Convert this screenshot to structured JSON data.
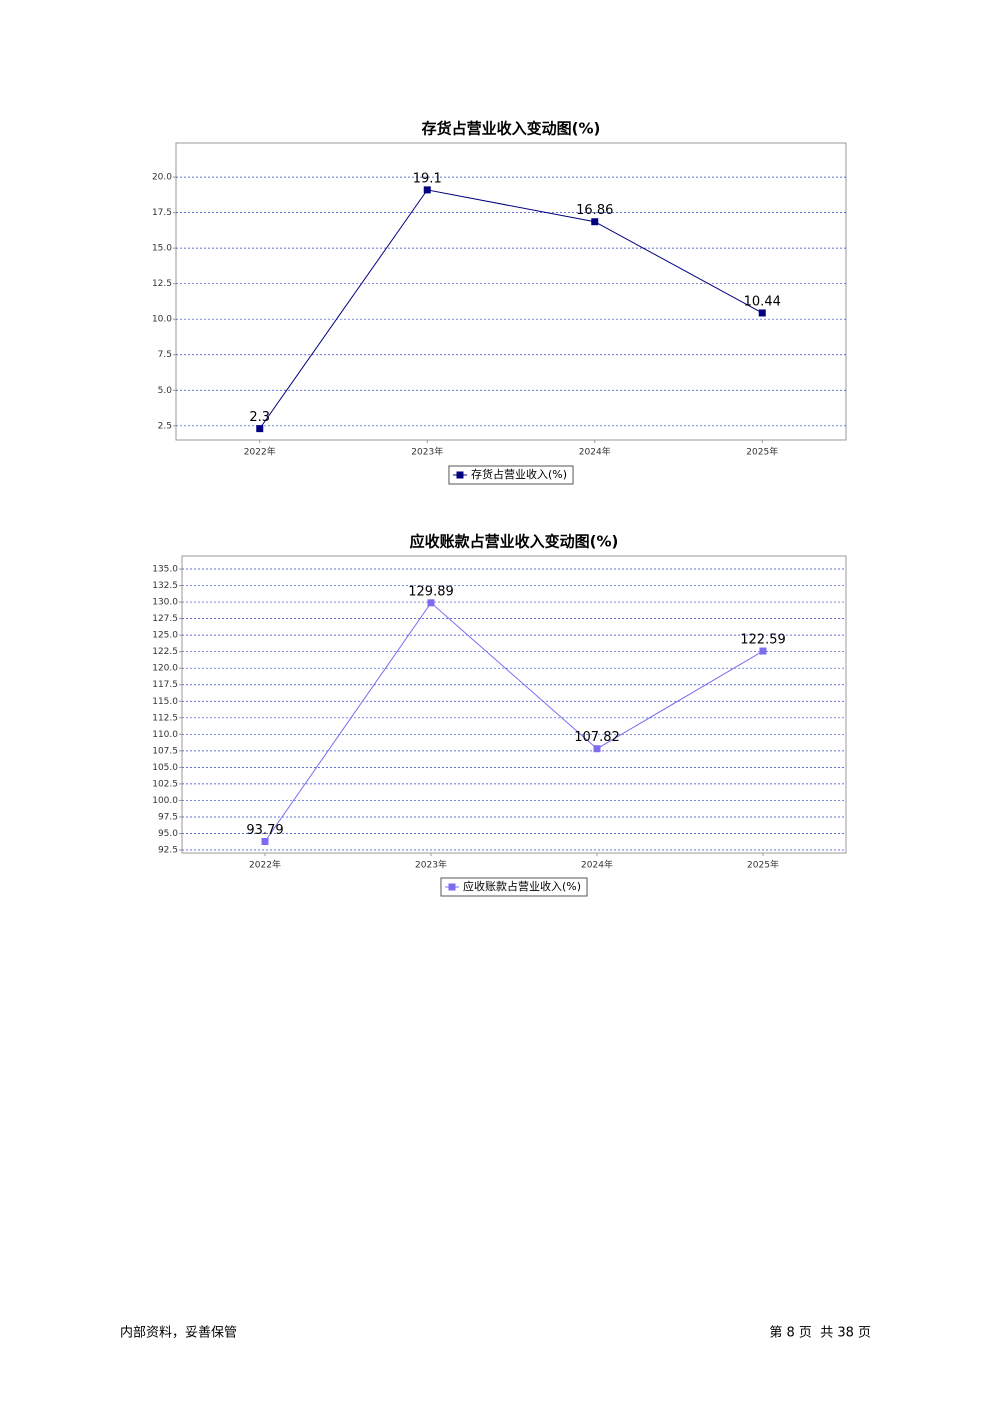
{
  "chart_data": [
    {
      "type": "line",
      "title": "存货占营业收入变动图(%)",
      "categories": [
        "2022年",
        "2023年",
        "2024年",
        "2025年"
      ],
      "series": [
        {
          "name": "存货占营业收入(%)",
          "color": "#000080",
          "values": [
            2.3,
            19.1,
            16.86,
            10.44
          ]
        }
      ],
      "ylim": [
        1.5,
        22.4
      ],
      "yticks": [
        2.5,
        {
          "value": 5,
          "label": "5.0"
        },
        7.5,
        {
          "value": 10,
          "label": "10.0"
        },
        12.5,
        {
          "value": 15,
          "label": "15.0"
        },
        17.5,
        {
          "value": 20,
          "label": "20.0"
        }
      ],
      "grid": true,
      "legend": "bottom"
    },
    {
      "type": "line",
      "title": "应收账款占营业收入变动图(%)",
      "categories": [
        "2022年",
        "2023年",
        "2024年",
        "2025年"
      ],
      "series": [
        {
          "name": "应收账款占营业收入(%)",
          "color": "#7b6cf0",
          "values": [
            93.79,
            129.89,
            107.82,
            122.59
          ]
        }
      ],
      "ylim": [
        92.05,
        136.97
      ],
      "yticks": [
        92.5,
        {
          "value": 95,
          "label": "95.0"
        },
        97.5,
        {
          "value": 100,
          "label": "100.0"
        },
        102.5,
        {
          "value": 105,
          "label": "105.0"
        },
        107.5,
        {
          "value": 110,
          "label": "110.0"
        },
        112.5,
        {
          "value": 115,
          "label": "115.0"
        },
        117.5,
        {
          "value": 120,
          "label": "120.0"
        },
        122.5,
        {
          "value": 125,
          "label": "125.0"
        },
        127.5,
        {
          "value": 130,
          "label": "130.0"
        },
        132.5,
        {
          "value": 135,
          "label": "135.0"
        }
      ],
      "grid": true,
      "legend": "bottom"
    }
  ],
  "footer": {
    "left": "内部资料，妥善保管",
    "right": "第 8 页  共 38 页"
  }
}
